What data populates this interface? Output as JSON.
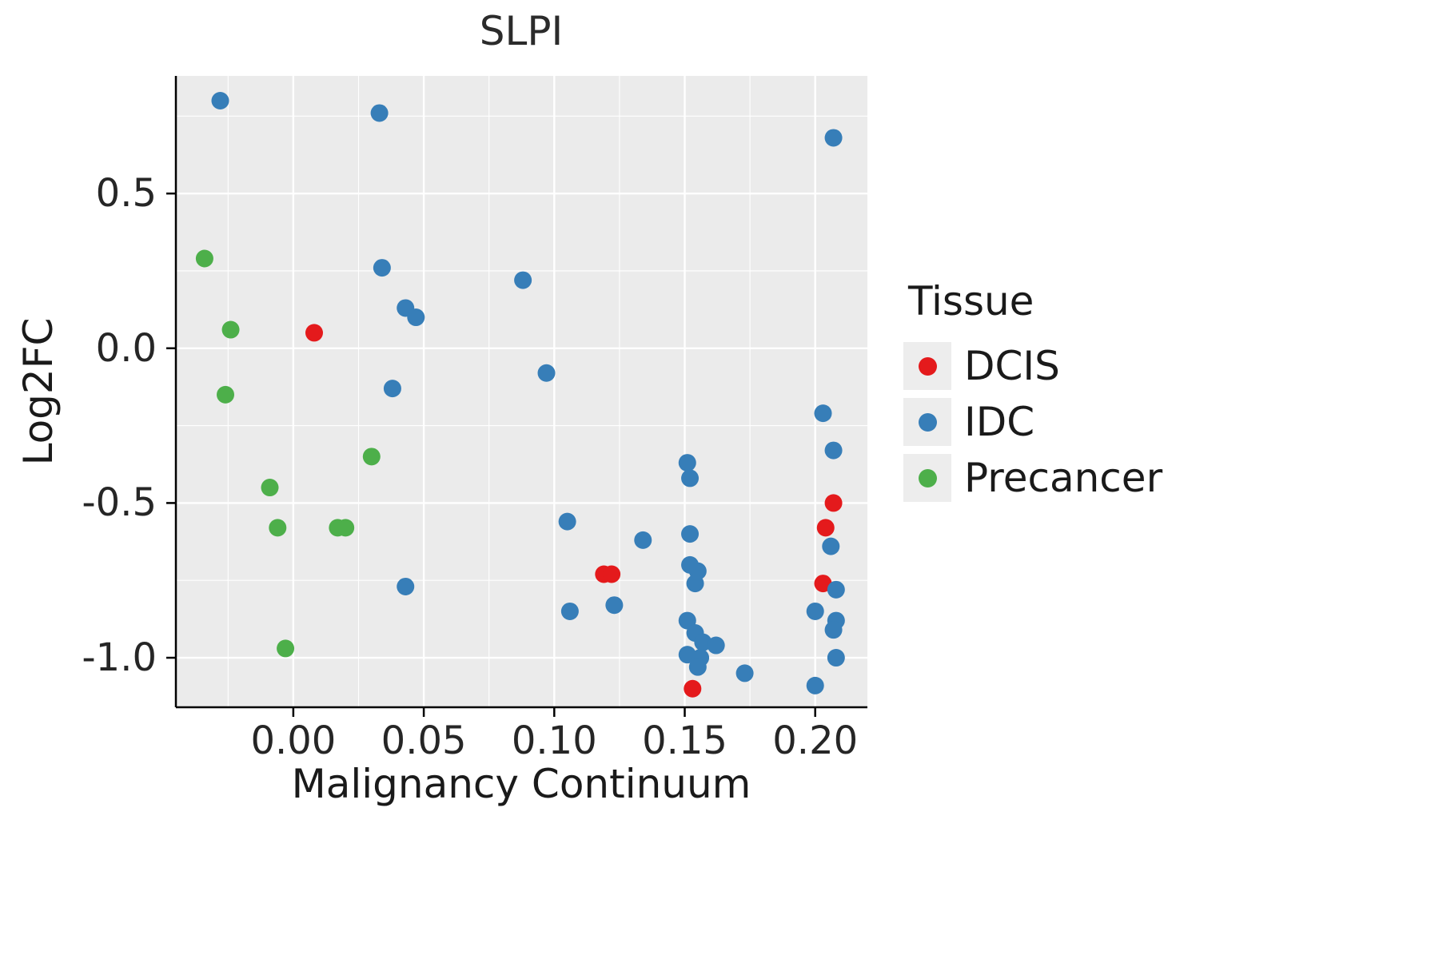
{
  "chart_data": {
    "type": "scatter",
    "title": "SLPI",
    "xlabel": "Malignancy Continuum",
    "ylabel": "Log2FC",
    "xlim": [
      -0.045,
      0.22
    ],
    "ylim": [
      -1.16,
      0.88
    ],
    "grid": true,
    "x_ticks": [
      0.0,
      0.05,
      0.1,
      0.15,
      0.2
    ],
    "x_tick_labels": [
      "0.00",
      "0.05",
      "0.10",
      "0.15",
      "0.20"
    ],
    "x_minor": [
      -0.025,
      0.025,
      0.075,
      0.125,
      0.175
    ],
    "y_ticks": [
      0.5,
      0.0,
      -0.5,
      -1.0
    ],
    "y_tick_labels": [
      "0.5",
      "0.0",
      "-0.5",
      "-1.0"
    ],
    "y_minor": [
      0.75,
      0.25,
      -0.25,
      -0.75
    ],
    "style": {
      "panel_bg": "#ebebeb",
      "gridline_color": "#ffffff",
      "axis_color": "#000000",
      "point_radius": 11
    },
    "legend": {
      "title": "Tissue",
      "position": "right",
      "entries": [
        {
          "label": "DCIS",
          "color": "#e41a1c"
        },
        {
          "label": "IDC",
          "color": "#377eb8"
        },
        {
          "label": "Precancer",
          "color": "#4daf4a"
        }
      ]
    },
    "series": [
      {
        "name": "DCIS",
        "color": "#e41a1c",
        "points": [
          [
            0.008,
            0.05
          ],
          [
            0.119,
            -0.73
          ],
          [
            0.122,
            -0.73
          ],
          [
            0.207,
            -0.5
          ],
          [
            0.204,
            -0.58
          ],
          [
            0.203,
            -0.76
          ],
          [
            0.153,
            -1.1
          ]
        ]
      },
      {
        "name": "IDC",
        "color": "#377eb8",
        "points": [
          [
            -0.028,
            0.8
          ],
          [
            0.033,
            0.76
          ],
          [
            0.207,
            0.68
          ],
          [
            0.034,
            0.26
          ],
          [
            0.088,
            0.22
          ],
          [
            0.043,
            0.13
          ],
          [
            0.047,
            0.1
          ],
          [
            0.097,
            -0.08
          ],
          [
            0.038,
            -0.13
          ],
          [
            0.203,
            -0.21
          ],
          [
            0.207,
            -0.33
          ],
          [
            0.151,
            -0.37
          ],
          [
            0.152,
            -0.42
          ],
          [
            0.105,
            -0.56
          ],
          [
            0.152,
            -0.6
          ],
          [
            0.134,
            -0.62
          ],
          [
            0.206,
            -0.64
          ],
          [
            0.152,
            -0.7
          ],
          [
            0.155,
            -0.72
          ],
          [
            0.154,
            -0.76
          ],
          [
            0.043,
            -0.77
          ],
          [
            0.208,
            -0.78
          ],
          [
            0.123,
            -0.83
          ],
          [
            0.106,
            -0.85
          ],
          [
            0.2,
            -0.85
          ],
          [
            0.151,
            -0.88
          ],
          [
            0.208,
            -0.88
          ],
          [
            0.207,
            -0.91
          ],
          [
            0.154,
            -0.92
          ],
          [
            0.157,
            -0.95
          ],
          [
            0.162,
            -0.96
          ],
          [
            0.151,
            -0.99
          ],
          [
            0.156,
            -1.0
          ],
          [
            0.208,
            -1.0
          ],
          [
            0.155,
            -1.03
          ],
          [
            0.173,
            -1.05
          ],
          [
            0.2,
            -1.09
          ]
        ]
      },
      {
        "name": "Precancer",
        "color": "#4daf4a",
        "points": [
          [
            -0.034,
            0.29
          ],
          [
            -0.024,
            0.06
          ],
          [
            -0.026,
            -0.15
          ],
          [
            0.03,
            -0.35
          ],
          [
            -0.009,
            -0.45
          ],
          [
            -0.006,
            -0.58
          ],
          [
            0.017,
            -0.58
          ],
          [
            0.02,
            -0.58
          ],
          [
            -0.003,
            -0.97
          ]
        ]
      }
    ]
  }
}
